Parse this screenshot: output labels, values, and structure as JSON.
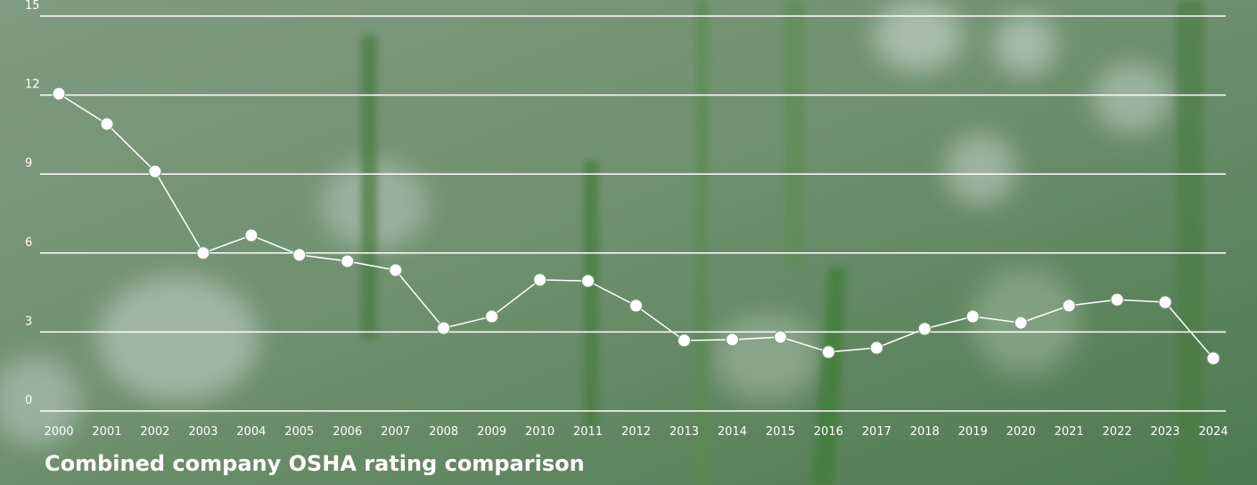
{
  "chart_data": {
    "type": "line",
    "title": "Combined company OSHA rating comparison",
    "categories": [
      "2000",
      "2001",
      "2002",
      "2003",
      "2004",
      "2005",
      "2006",
      "2007",
      "2008",
      "2009",
      "2010",
      "2011",
      "2012",
      "2013",
      "2014",
      "2015",
      "2016",
      "2017",
      "2018",
      "2019",
      "2020",
      "2021",
      "2022",
      "2023",
      "2024"
    ],
    "values": [
      12.05,
      10.9,
      9.1,
      6.0,
      6.67,
      5.93,
      5.69,
      5.35,
      3.15,
      3.59,
      4.98,
      4.94,
      4.0,
      2.68,
      2.71,
      2.81,
      2.24,
      2.4,
      3.12,
      3.59,
      3.35,
      4.0,
      4.23,
      4.13,
      2.0
    ],
    "color": "#ffffff",
    "ylim": [
      0,
      15
    ],
    "yticks": [
      0,
      3,
      6,
      9,
      12,
      15
    ],
    "grid": true
  }
}
